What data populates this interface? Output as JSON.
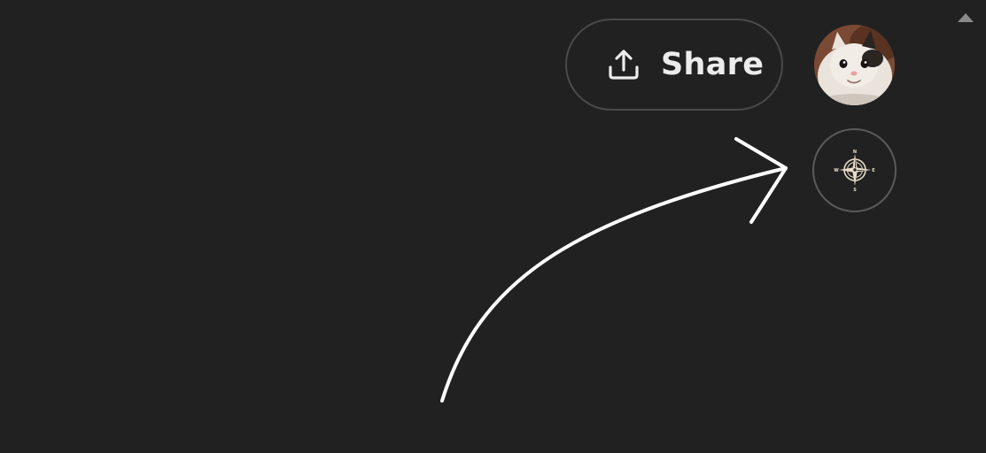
{
  "header": {
    "share_label": "Share",
    "share_icon": "upload-icon",
    "avatar_icon": "cat-avatar",
    "compass_icon": "compass-icon",
    "compass_letters": {
      "n": "N",
      "e": "E",
      "s": "S",
      "w": "W"
    },
    "scroll_icon": "triangle-up-icon"
  },
  "colors": {
    "background": "#212121",
    "border": "#4a4a4a",
    "text": "#ececec",
    "annotation": "#ffffff"
  }
}
